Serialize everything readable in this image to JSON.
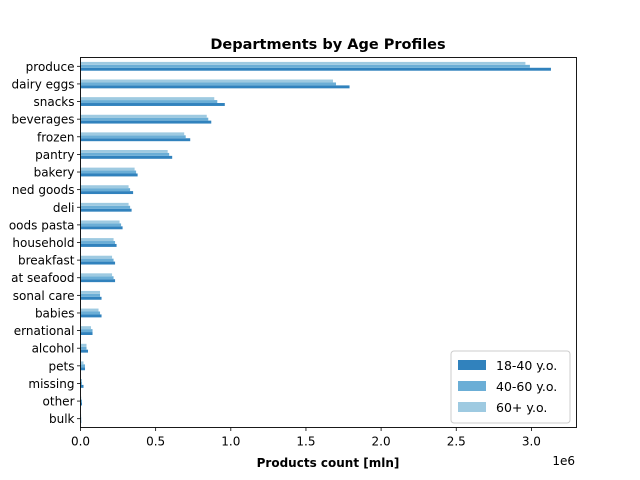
{
  "chart_data": {
    "type": "bar",
    "orientation": "horizontal",
    "title": "Departments by Age Profiles",
    "xlabel": "Products count [mln]",
    "ylabel": "",
    "x_offset_text": "1e6",
    "xlim": [
      0,
      3.3
    ],
    "xticks": [
      0.0,
      0.5,
      1.0,
      1.5,
      2.0,
      2.5,
      3.0
    ],
    "xtick_labels": [
      "0.0",
      "0.5",
      "1.0",
      "1.5",
      "2.0",
      "2.5",
      "3.0"
    ],
    "grid": false,
    "legend_position": "lower-right",
    "categories": [
      "produce",
      "dairy eggs",
      "snacks",
      "beverages",
      "frozen",
      "pantry",
      "bakery",
      "ned goods",
      "deli",
      "oods pasta",
      "household",
      "breakfast",
      "at seafood",
      "sonal care",
      "babies",
      "ernational",
      "alcohol",
      "pets",
      "missing",
      "other",
      "bulk"
    ],
    "series": [
      {
        "name": "18-40 y.o.",
        "color": "#3182bd",
        "values": [
          3.13,
          1.79,
          0.96,
          0.87,
          0.73,
          0.61,
          0.38,
          0.35,
          0.34,
          0.28,
          0.24,
          0.23,
          0.23,
          0.14,
          0.14,
          0.08,
          0.05,
          0.03,
          0.02,
          0.01,
          0.005
        ]
      },
      {
        "name": "40-60 y.o.",
        "color": "#6baed6",
        "values": [
          2.99,
          1.7,
          0.91,
          0.85,
          0.7,
          0.59,
          0.37,
          0.33,
          0.33,
          0.27,
          0.23,
          0.22,
          0.22,
          0.13,
          0.13,
          0.08,
          0.04,
          0.03,
          0.01,
          0.01,
          0.005
        ]
      },
      {
        "name": "60+ y.o.",
        "color": "#9ecae1",
        "values": [
          2.96,
          1.68,
          0.89,
          0.84,
          0.69,
          0.58,
          0.36,
          0.32,
          0.32,
          0.26,
          0.22,
          0.21,
          0.21,
          0.13,
          0.12,
          0.07,
          0.04,
          0.02,
          0.01,
          0.005,
          0.004
        ]
      }
    ]
  }
}
